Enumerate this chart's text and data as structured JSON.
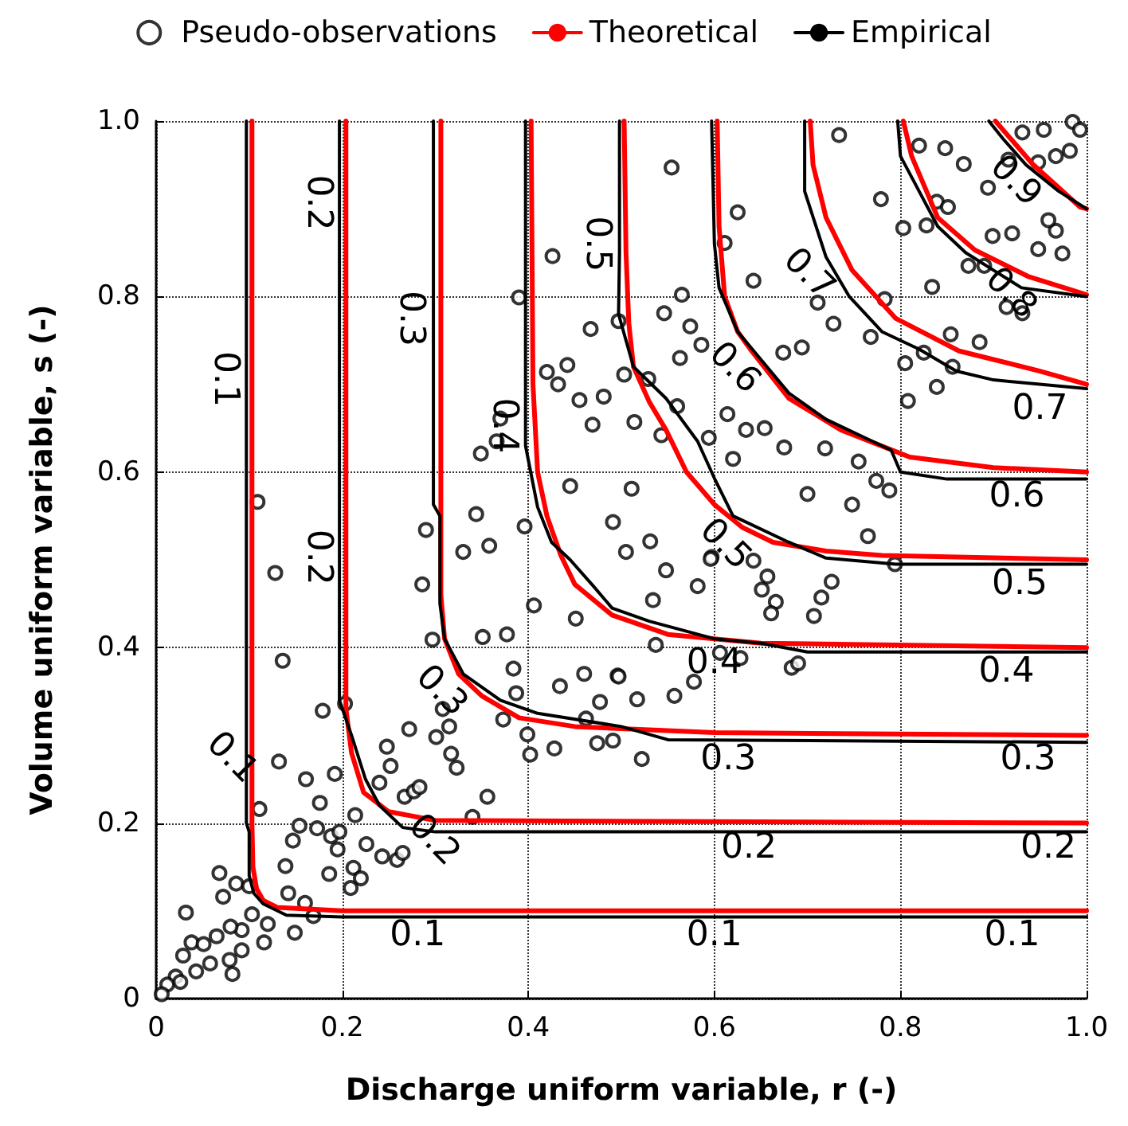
{
  "chart_data": {
    "type": "line",
    "xlabel": "Discharge uniform variable, r (-)",
    "ylabel": "Volume uniform variable, s (-)",
    "xlim": [
      0,
      1
    ],
    "ylim": [
      0,
      1
    ],
    "xticks": [
      0,
      0.2,
      0.4,
      0.6,
      0.8,
      {
        "value": 1,
        "label": "1.0"
      }
    ],
    "yticks": [
      0,
      0.2,
      0.4,
      0.6,
      0.8,
      {
        "value": 1,
        "label": "1.0"
      }
    ],
    "grid": true,
    "legend": "top",
    "series": [
      {
        "name": "Pseudo-observations",
        "type": "scatter",
        "marker": "circle",
        "color": "#000000",
        "x": [
          0.426,
          0.39,
          0.467,
          0.42,
          0.442,
          0.432,
          0.455,
          0.481,
          0.469,
          0.37,
          0.366,
          0.349,
          0.445,
          0.109,
          0.344,
          0.396,
          0.29,
          0.33,
          0.358,
          0.491,
          0.497,
          0.554,
          0.625,
          0.611,
          0.642,
          0.565,
          0.546,
          0.574,
          0.586,
          0.563,
          0.503,
          0.529,
          0.56,
          0.514,
          0.543,
          0.594,
          0.511,
          0.531,
          0.597,
          0.614,
          0.634,
          0.654,
          0.62,
          0.675,
          0.719,
          0.755,
          0.7,
          0.748,
          0.774,
          0.788,
          0.765,
          0.674,
          0.711,
          0.728,
          0.694,
          0.768,
          0.783,
          0.808,
          0.839,
          0.825,
          0.856,
          0.854,
          0.885,
          0.834,
          0.803,
          0.779,
          0.734,
          0.82,
          0.848,
          0.868,
          0.894,
          0.839,
          0.851,
          0.828,
          0.899,
          0.92,
          0.948,
          0.974,
          0.967,
          0.959,
          0.873,
          0.89,
          0.914,
          0.931,
          0.931,
          0.954,
          0.985,
          0.993,
          0.982,
          0.967,
          0.948,
          0.916,
          0.805,
          0.128,
          0.136,
          0.286,
          0.297,
          0.351,
          0.377,
          0.406,
          0.451,
          0.384,
          0.434,
          0.46,
          0.477,
          0.496,
          0.462,
          0.387,
          0.373,
          0.399,
          0.402,
          0.428,
          0.474,
          0.308,
          0.315,
          0.301,
          0.317,
          0.323,
          0.272,
          0.248,
          0.252,
          0.24,
          0.356,
          0.34,
          0.203,
          0.179,
          0.132,
          0.161,
          0.192,
          0.176,
          0.214,
          0.154,
          0.173,
          0.188,
          0.197,
          0.147,
          0.195,
          0.226,
          0.243,
          0.259,
          0.265,
          0.267,
          0.277,
          0.283,
          0.111,
          0.139,
          0.186,
          0.212,
          0.22,
          0.209,
          0.068,
          0.086,
          0.072,
          0.1,
          0.142,
          0.16,
          0.169,
          0.149,
          0.116,
          0.12,
          0.103,
          0.092,
          0.08,
          0.065,
          0.032,
          0.038,
          0.051,
          0.092,
          0.079,
          0.058,
          0.043,
          0.082,
          0.029,
          0.021,
          0.012,
          0.006,
          0.026,
          0.505,
          0.548,
          0.582,
          0.534,
          0.596,
          0.642,
          0.657,
          0.651,
          0.666,
          0.661,
          0.726,
          0.715,
          0.707,
          0.794,
          0.537,
          0.606,
          0.628,
          0.683,
          0.69,
          0.497,
          0.517,
          0.557,
          0.578,
          0.522,
          0.491
        ],
        "values": [
          0.846,
          0.799,
          0.763,
          0.714,
          0.722,
          0.7,
          0.682,
          0.686,
          0.654,
          0.661,
          0.635,
          0.621,
          0.584,
          0.566,
          0.552,
          0.538,
          0.534,
          0.509,
          0.516,
          0.543,
          0.772,
          0.947,
          0.896,
          0.861,
          0.818,
          0.802,
          0.781,
          0.766,
          0.745,
          0.73,
          0.711,
          0.706,
          0.675,
          0.657,
          0.642,
          0.639,
          0.581,
          0.521,
          0.503,
          0.666,
          0.648,
          0.65,
          0.615,
          0.628,
          0.627,
          0.612,
          0.575,
          0.563,
          0.59,
          0.579,
          0.527,
          0.736,
          0.793,
          0.769,
          0.742,
          0.754,
          0.797,
          0.681,
          0.697,
          0.736,
          0.72,
          0.757,
          0.748,
          0.811,
          0.878,
          0.911,
          0.984,
          0.972,
          0.969,
          0.951,
          0.924,
          0.908,
          0.902,
          0.881,
          0.869,
          0.872,
          0.854,
          0.849,
          0.875,
          0.887,
          0.835,
          0.835,
          0.788,
          0.781,
          0.987,
          0.99,
          0.999,
          0.99,
          0.966,
          0.96,
          0.953,
          0.956,
          0.724,
          0.485,
          0.385,
          0.472,
          0.409,
          0.412,
          0.415,
          0.448,
          0.433,
          0.376,
          0.356,
          0.37,
          0.338,
          0.368,
          0.319,
          0.348,
          0.318,
          0.301,
          0.278,
          0.285,
          0.291,
          0.33,
          0.31,
          0.298,
          0.279,
          0.263,
          0.307,
          0.287,
          0.265,
          0.246,
          0.23,
          0.207,
          0.336,
          0.328,
          0.27,
          0.25,
          0.256,
          0.223,
          0.209,
          0.197,
          0.194,
          0.185,
          0.19,
          0.18,
          0.17,
          0.176,
          0.162,
          0.158,
          0.166,
          0.23,
          0.236,
          0.241,
          0.216,
          0.151,
          0.142,
          0.149,
          0.137,
          0.126,
          0.143,
          0.131,
          0.116,
          0.128,
          0.12,
          0.109,
          0.094,
          0.075,
          0.064,
          0.085,
          0.096,
          0.078,
          0.082,
          0.071,
          0.098,
          0.064,
          0.062,
          0.055,
          0.044,
          0.04,
          0.031,
          0.028,
          0.049,
          0.025,
          0.016,
          0.005,
          0.019,
          0.509,
          0.488,
          0.47,
          0.454,
          0.501,
          0.499,
          0.481,
          0.466,
          0.452,
          0.439,
          0.475,
          0.457,
          0.436,
          0.495,
          0.403,
          0.394,
          0.388,
          0.377,
          0.382,
          0.367,
          0.341,
          0.345,
          0.361,
          0.273,
          0.294
        ]
      },
      {
        "name": "Theoretical",
        "marker": "none",
        "color": "#ff0000",
        "x": [
          0.103,
          0.103,
          0.104,
          0.108,
          0.115,
          0.13,
          0.2,
          1
        ],
        "values": [
          1,
          0.2,
          0.15,
          0.125,
          0.112,
          0.104,
          0.1,
          0.1
        ]
      },
      {
        "marker": "none",
        "color": "#ff0000",
        "x": [
          0.204,
          0.204,
          0.21,
          0.223,
          0.25,
          0.3,
          1
        ],
        "values": [
          1,
          0.33,
          0.28,
          0.235,
          0.213,
          0.203,
          0.2
        ]
      },
      {
        "marker": "none",
        "color": "#ff0000",
        "x": [
          0.306,
          0.306,
          0.31,
          0.325,
          0.35,
          0.39,
          0.45,
          0.6,
          1
        ],
        "values": [
          1,
          0.46,
          0.41,
          0.37,
          0.345,
          0.32,
          0.31,
          0.303,
          0.3
        ]
      },
      {
        "marker": "none",
        "color": "#ff0000",
        "x": [
          0.403,
          0.405,
          0.41,
          0.42,
          0.435,
          0.45,
          0.49,
          0.55,
          0.65,
          1
        ],
        "values": [
          1,
          0.7,
          0.6,
          0.55,
          0.505,
          0.472,
          0.437,
          0.415,
          0.405,
          0.4
        ]
      },
      {
        "marker": "none",
        "color": "#ff0000",
        "x": [
          0.503,
          0.505,
          0.508,
          0.513,
          0.53,
          0.548,
          0.57,
          0.6,
          0.63,
          0.663,
          0.72,
          0.78,
          1
        ],
        "values": [
          1,
          0.85,
          0.77,
          0.72,
          0.68,
          0.648,
          0.6,
          0.563,
          0.537,
          0.52,
          0.51,
          0.505,
          0.5
        ]
      },
      {
        "marker": "none",
        "color": "#ff0000",
        "x": [
          0.603,
          0.605,
          0.611,
          0.625,
          0.64,
          0.68,
          0.736,
          0.81,
          0.9,
          1
        ],
        "values": [
          1,
          0.88,
          0.8,
          0.76,
          0.738,
          0.684,
          0.648,
          0.617,
          0.605,
          0.6
        ]
      },
      {
        "marker": "none",
        "color": "#ff0000",
        "x": [
          0.703,
          0.706,
          0.72,
          0.748,
          0.795,
          0.863,
          0.95,
          1
        ],
        "values": [
          1,
          0.95,
          0.89,
          0.83,
          0.775,
          0.738,
          0.715,
          0.7
        ]
      },
      {
        "marker": "none",
        "color": "#ff0000",
        "x": [
          0.803,
          0.812,
          0.84,
          0.88,
          0.937,
          1
        ],
        "values": [
          1,
          0.96,
          0.89,
          0.853,
          0.823,
          0.802
        ]
      },
      {
        "marker": "none",
        "color": "#ff0000",
        "x": [
          0.902,
          0.942,
          0.993,
          1
        ],
        "values": [
          1,
          0.951,
          0.902,
          0.9
        ]
      },
      {
        "name": "Empirical",
        "marker": "none",
        "color": "#000000",
        "x": [
          0.097,
          0.097,
          0.1,
          0.1,
          0.105,
          0.115,
          0.14,
          0.2,
          1
        ],
        "values": [
          1,
          0.2,
          0.19,
          0.14,
          0.12,
          0.108,
          0.095,
          0.093,
          0.093
        ]
      },
      {
        "marker": "none",
        "color": "#000000",
        "x": [
          0.197,
          0.197,
          0.21,
          0.225,
          0.24,
          0.265,
          0.3,
          1
        ],
        "values": [
          1,
          0.34,
          0.3,
          0.25,
          0.22,
          0.195,
          0.19,
          0.19
        ]
      },
      {
        "marker": "none",
        "color": "#000000",
        "x": [
          0.298,
          0.298,
          0.305,
          0.305,
          0.31,
          0.33,
          0.37,
          0.41,
          0.5,
          0.55,
          1
        ],
        "values": [
          1,
          0.563,
          0.55,
          0.45,
          0.41,
          0.37,
          0.34,
          0.325,
          0.31,
          0.295,
          0.292
        ]
      },
      {
        "marker": "none",
        "color": "#000000",
        "x": [
          0.397,
          0.397,
          0.41,
          0.425,
          0.445,
          0.47,
          0.49,
          0.53,
          0.6,
          0.65,
          0.7,
          1
        ],
        "values": [
          1,
          0.63,
          0.56,
          0.52,
          0.5,
          0.47,
          0.445,
          0.43,
          0.41,
          0.405,
          0.395,
          0.395
        ]
      },
      {
        "marker": "none",
        "color": "#000000",
        "x": [
          0.498,
          0.498,
          0.497,
          0.513,
          0.548,
          0.582,
          0.6,
          0.62,
          0.68,
          0.72,
          0.795,
          1
        ],
        "values": [
          1,
          0.85,
          0.78,
          0.72,
          0.684,
          0.635,
          0.593,
          0.55,
          0.52,
          0.502,
          0.495,
          0.495
        ]
      },
      {
        "marker": "none",
        "color": "#000000",
        "x": [
          0.597,
          0.6,
          0.605,
          0.625,
          0.68,
          0.72,
          0.76,
          0.79,
          0.8,
          0.85,
          1
        ],
        "values": [
          1,
          0.86,
          0.81,
          0.76,
          0.69,
          0.66,
          0.64,
          0.625,
          0.6,
          0.592,
          0.592
        ]
      },
      {
        "marker": "none",
        "color": "#000000",
        "x": [
          0.697,
          0.697,
          0.72,
          0.745,
          0.78,
          0.82,
          0.86,
          0.9,
          1
        ],
        "values": [
          1,
          0.92,
          0.845,
          0.8,
          0.76,
          0.74,
          0.715,
          0.705,
          0.695
        ]
      },
      {
        "marker": "none",
        "color": "#000000",
        "x": [
          0.797,
          0.8,
          0.82,
          0.84,
          0.87,
          0.9,
          0.93,
          1
        ],
        "values": [
          1,
          0.96,
          0.92,
          0.88,
          0.85,
          0.83,
          0.81,
          0.8
        ]
      },
      {
        "marker": "none",
        "color": "#000000",
        "x": [
          0.895,
          0.91,
          0.935,
          0.97,
          1
        ],
        "values": [
          1,
          0.98,
          0.95,
          0.92,
          0.9
        ]
      }
    ],
    "annotations": [
      {
        "text": "0.1",
        "x": 0.1,
        "y": 0.706
      },
      {
        "text": "0.1",
        "x": 0.1,
        "y": 0.294
      },
      {
        "text": "0.1",
        "x": 0.281,
        "y": 0.1
      },
      {
        "text": "0.1",
        "x": 0.6,
        "y": 0.1
      },
      {
        "text": "0.1",
        "x": 0.92,
        "y": 0.1
      },
      {
        "text": "0.2",
        "x": 0.2,
        "y": 0.907
      },
      {
        "text": "0.2",
        "x": 0.2,
        "y": 0.503
      },
      {
        "text": "0.2",
        "x": 0.317,
        "y": 0.2
      },
      {
        "text": "0.2",
        "x": 0.637,
        "y": 0.2
      },
      {
        "text": "0.2",
        "x": 0.959,
        "y": 0.2
      },
      {
        "text": "0.3",
        "x": 0.3,
        "y": 0.775
      },
      {
        "text": "0.3",
        "x": 0.325,
        "y": 0.37
      },
      {
        "text": "0.3",
        "x": 0.615,
        "y": 0.3
      },
      {
        "text": "0.3",
        "x": 0.937,
        "y": 0.3
      },
      {
        "text": "0.4",
        "x": 0.4,
        "y": 0.653
      },
      {
        "text": "0.4",
        "x": 0.6,
        "y": 0.41
      },
      {
        "text": "0.4",
        "x": 0.914,
        "y": 0.4
      },
      {
        "text": "0.5",
        "x": 0.5,
        "y": 0.86
      },
      {
        "text": "0.5",
        "x": 0.63,
        "y": 0.537
      },
      {
        "text": "0.5",
        "x": 0.928,
        "y": 0.5
      },
      {
        "text": "0.6",
        "x": 0.64,
        "y": 0.738
      },
      {
        "text": "0.6",
        "x": 0.925,
        "y": 0.6
      },
      {
        "text": "0.7",
        "x": 0.72,
        "y": 0.845
      },
      {
        "text": "0.7",
        "x": 0.95,
        "y": 0.7
      },
      {
        "text": "0.8",
        "x": 0.937,
        "y": 0.823
      },
      {
        "text": "0.9",
        "x": 0.942,
        "y": 0.951
      }
    ]
  }
}
